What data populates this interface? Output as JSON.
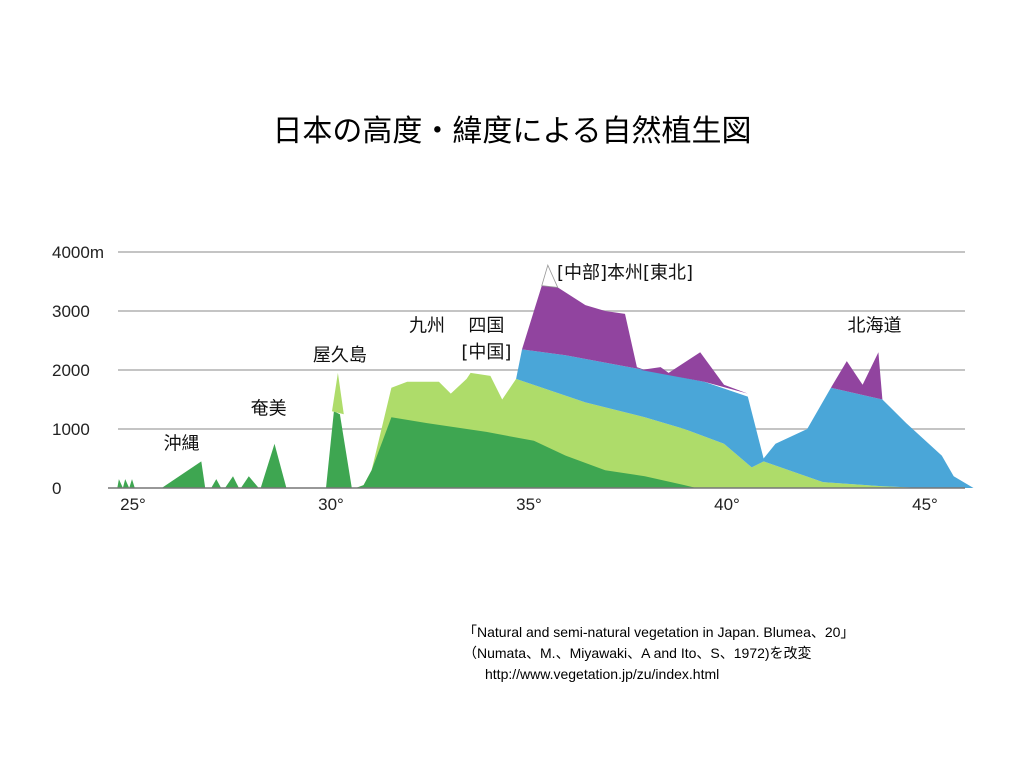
{
  "title": "日本の高度・緯度による自然植生図",
  "chart_data": {
    "type": "area",
    "title": "",
    "xlabel": "",
    "ylabel": "",
    "xlim": [
      24.5,
      46.5
    ],
    "ylim": [
      0,
      4000
    ],
    "grid": true,
    "y_ticks": [
      {
        "value": 4000,
        "label": "4000m"
      },
      {
        "value": 3000,
        "label": "3000"
      },
      {
        "value": 2000,
        "label": "2000"
      },
      {
        "value": 1000,
        "label": "1000"
      },
      {
        "value": 0,
        "label": "0"
      }
    ],
    "x_ticks": [
      {
        "value": 25,
        "label": "25°"
      },
      {
        "value": 30,
        "label": "30°"
      },
      {
        "value": 35,
        "label": "35°"
      },
      {
        "value": 40,
        "label": "40°"
      },
      {
        "value": 45,
        "label": "45°"
      }
    ],
    "colors": {
      "dark_green": "#3ea651",
      "light_green": "#aedc6a",
      "blue": "#4aa6d8",
      "purple": "#91449f",
      "white": "#ffffff",
      "grid": "#c4c4c4"
    },
    "series": [
      {
        "color_key": "dark_green",
        "points": [
          [
            24.68,
            0
          ],
          [
            24.72,
            150
          ],
          [
            24.82,
            0
          ],
          [
            24.88,
            150
          ],
          [
            24.98,
            0
          ],
          [
            25.05,
            150
          ],
          [
            25.12,
            0
          ]
        ]
      },
      {
        "color_key": "dark_green",
        "points": [
          [
            25.8,
            0
          ],
          [
            26.8,
            450
          ],
          [
            26.9,
            0
          ]
        ]
      },
      {
        "color_key": "dark_green",
        "points": [
          [
            27.05,
            0
          ],
          [
            27.18,
            150
          ],
          [
            27.3,
            0
          ]
        ]
      },
      {
        "color_key": "dark_green",
        "points": [
          [
            27.4,
            0
          ],
          [
            27.6,
            200
          ],
          [
            27.75,
            0
          ]
        ]
      },
      {
        "color_key": "dark_green",
        "points": [
          [
            27.8,
            0
          ],
          [
            28.0,
            200
          ],
          [
            28.25,
            0
          ]
        ]
      },
      {
        "color_key": "dark_green",
        "points": [
          [
            28.3,
            0
          ],
          [
            28.65,
            750
          ],
          [
            28.95,
            0
          ]
        ]
      },
      {
        "color_key": "dark_green",
        "points": [
          [
            29.95,
            0
          ],
          [
            30.15,
            1300
          ],
          [
            30.3,
            1250
          ],
          [
            30.6,
            0
          ]
        ]
      },
      {
        "color_key": "light_green",
        "points": [
          [
            30.1,
            1300
          ],
          [
            30.25,
            1950
          ],
          [
            30.4,
            1250
          ]
        ]
      },
      {
        "color_key": "light_green",
        "points": [
          [
            30.7,
            0
          ],
          [
            30.9,
            50
          ],
          [
            31.1,
            300
          ],
          [
            31.6,
            1700
          ],
          [
            32.0,
            1800
          ],
          [
            32.8,
            1800
          ],
          [
            33.1,
            1600
          ],
          [
            33.5,
            1850
          ],
          [
            33.6,
            1950
          ],
          [
            34.1,
            1900
          ],
          [
            34.4,
            1500
          ],
          [
            34.75,
            1850
          ],
          [
            36.5,
            1450
          ],
          [
            38.0,
            1200
          ],
          [
            39.0,
            1000
          ],
          [
            40.0,
            750
          ],
          [
            40.7,
            350
          ],
          [
            41.0,
            450
          ],
          [
            42.5,
            100
          ],
          [
            44.0,
            30
          ],
          [
            45.0,
            0
          ]
        ]
      },
      {
        "color_key": "dark_green",
        "points": [
          [
            30.7,
            0
          ],
          [
            30.9,
            50
          ],
          [
            31.1,
            300
          ],
          [
            31.6,
            1200
          ],
          [
            32.5,
            1100
          ],
          [
            34.0,
            950
          ],
          [
            35.2,
            800
          ],
          [
            36.0,
            550
          ],
          [
            37.0,
            300
          ],
          [
            38.0,
            200
          ],
          [
            39.0,
            50
          ],
          [
            39.3,
            0
          ]
        ]
      },
      {
        "color_key": "blue",
        "points": [
          [
            34.75,
            1850
          ],
          [
            34.9,
            2350
          ],
          [
            36.0,
            2250
          ],
          [
            38.0,
            2000
          ],
          [
            39.5,
            1800
          ],
          [
            40.6,
            1550
          ],
          [
            41.0,
            500
          ],
          [
            41.3,
            750
          ],
          [
            42.1,
            1000
          ],
          [
            42.7,
            1700
          ],
          [
            44.0,
            1500
          ],
          [
            44.6,
            1100
          ],
          [
            45.5,
            550
          ],
          [
            45.8,
            200
          ],
          [
            46.3,
            0
          ],
          [
            45.0,
            0
          ],
          [
            44.0,
            30
          ],
          [
            42.5,
            100
          ],
          [
            41.0,
            450
          ],
          [
            40.7,
            350
          ],
          [
            40.0,
            750
          ],
          [
            39.0,
            1000
          ],
          [
            38.0,
            1200
          ],
          [
            36.5,
            1450
          ]
        ]
      },
      {
        "color_key": "purple",
        "points": [
          [
            34.9,
            2350
          ],
          [
            35.2,
            3000
          ],
          [
            35.4,
            3430
          ],
          [
            35.8,
            3400
          ],
          [
            36.5,
            3100
          ],
          [
            37.0,
            3000
          ],
          [
            37.5,
            2950
          ],
          [
            37.8,
            2050
          ],
          [
            38.0,
            2000
          ],
          [
            36.0,
            2250
          ]
        ]
      },
      {
        "color_key": "purple",
        "points": [
          [
            37.9,
            2000
          ],
          [
            38.4,
            2050
          ],
          [
            38.6,
            1950
          ],
          [
            39.4,
            2300
          ],
          [
            40.0,
            1750
          ],
          [
            40.6,
            1600
          ],
          [
            39.5,
            1800
          ]
        ]
      },
      {
        "color_key": "purple",
        "points": [
          [
            42.7,
            1700
          ],
          [
            43.1,
            2150
          ],
          [
            43.5,
            1750
          ],
          [
            43.9,
            2300
          ],
          [
            44.0,
            1500
          ]
        ]
      },
      {
        "color_key": "white",
        "points": [
          [
            35.4,
            3430
          ],
          [
            35.55,
            3776
          ],
          [
            35.8,
            3400
          ]
        ]
      }
    ],
    "annotations": [
      {
        "text": "沖縄",
        "x": 26.3,
        "y": 650
      },
      {
        "text": "奄美",
        "x": 28.5,
        "y": 1250
      },
      {
        "text": "屋久島",
        "x": 30.3,
        "y": 2150
      },
      {
        "text": "九州",
        "x": 32.5,
        "y": 2650
      },
      {
        "text": "四国",
        "x": 34.0,
        "y": 2650
      },
      {
        "text": "[中国]",
        "x": 34.0,
        "y": 2200
      },
      {
        "text": "[中部]本州[東北]",
        "x": 37.5,
        "y": 3550
      },
      {
        "text": "北海道",
        "x": 43.8,
        "y": 2650
      }
    ]
  },
  "source": {
    "line1": "「Natural and semi-natural vegetation in Japan. Blumea、20」",
    "line2": "（Numata、M.、Miyawaki、A and Ito、S、1972)を改変",
    "url": "http://www.vegetation.jp/zu/index.html"
  }
}
